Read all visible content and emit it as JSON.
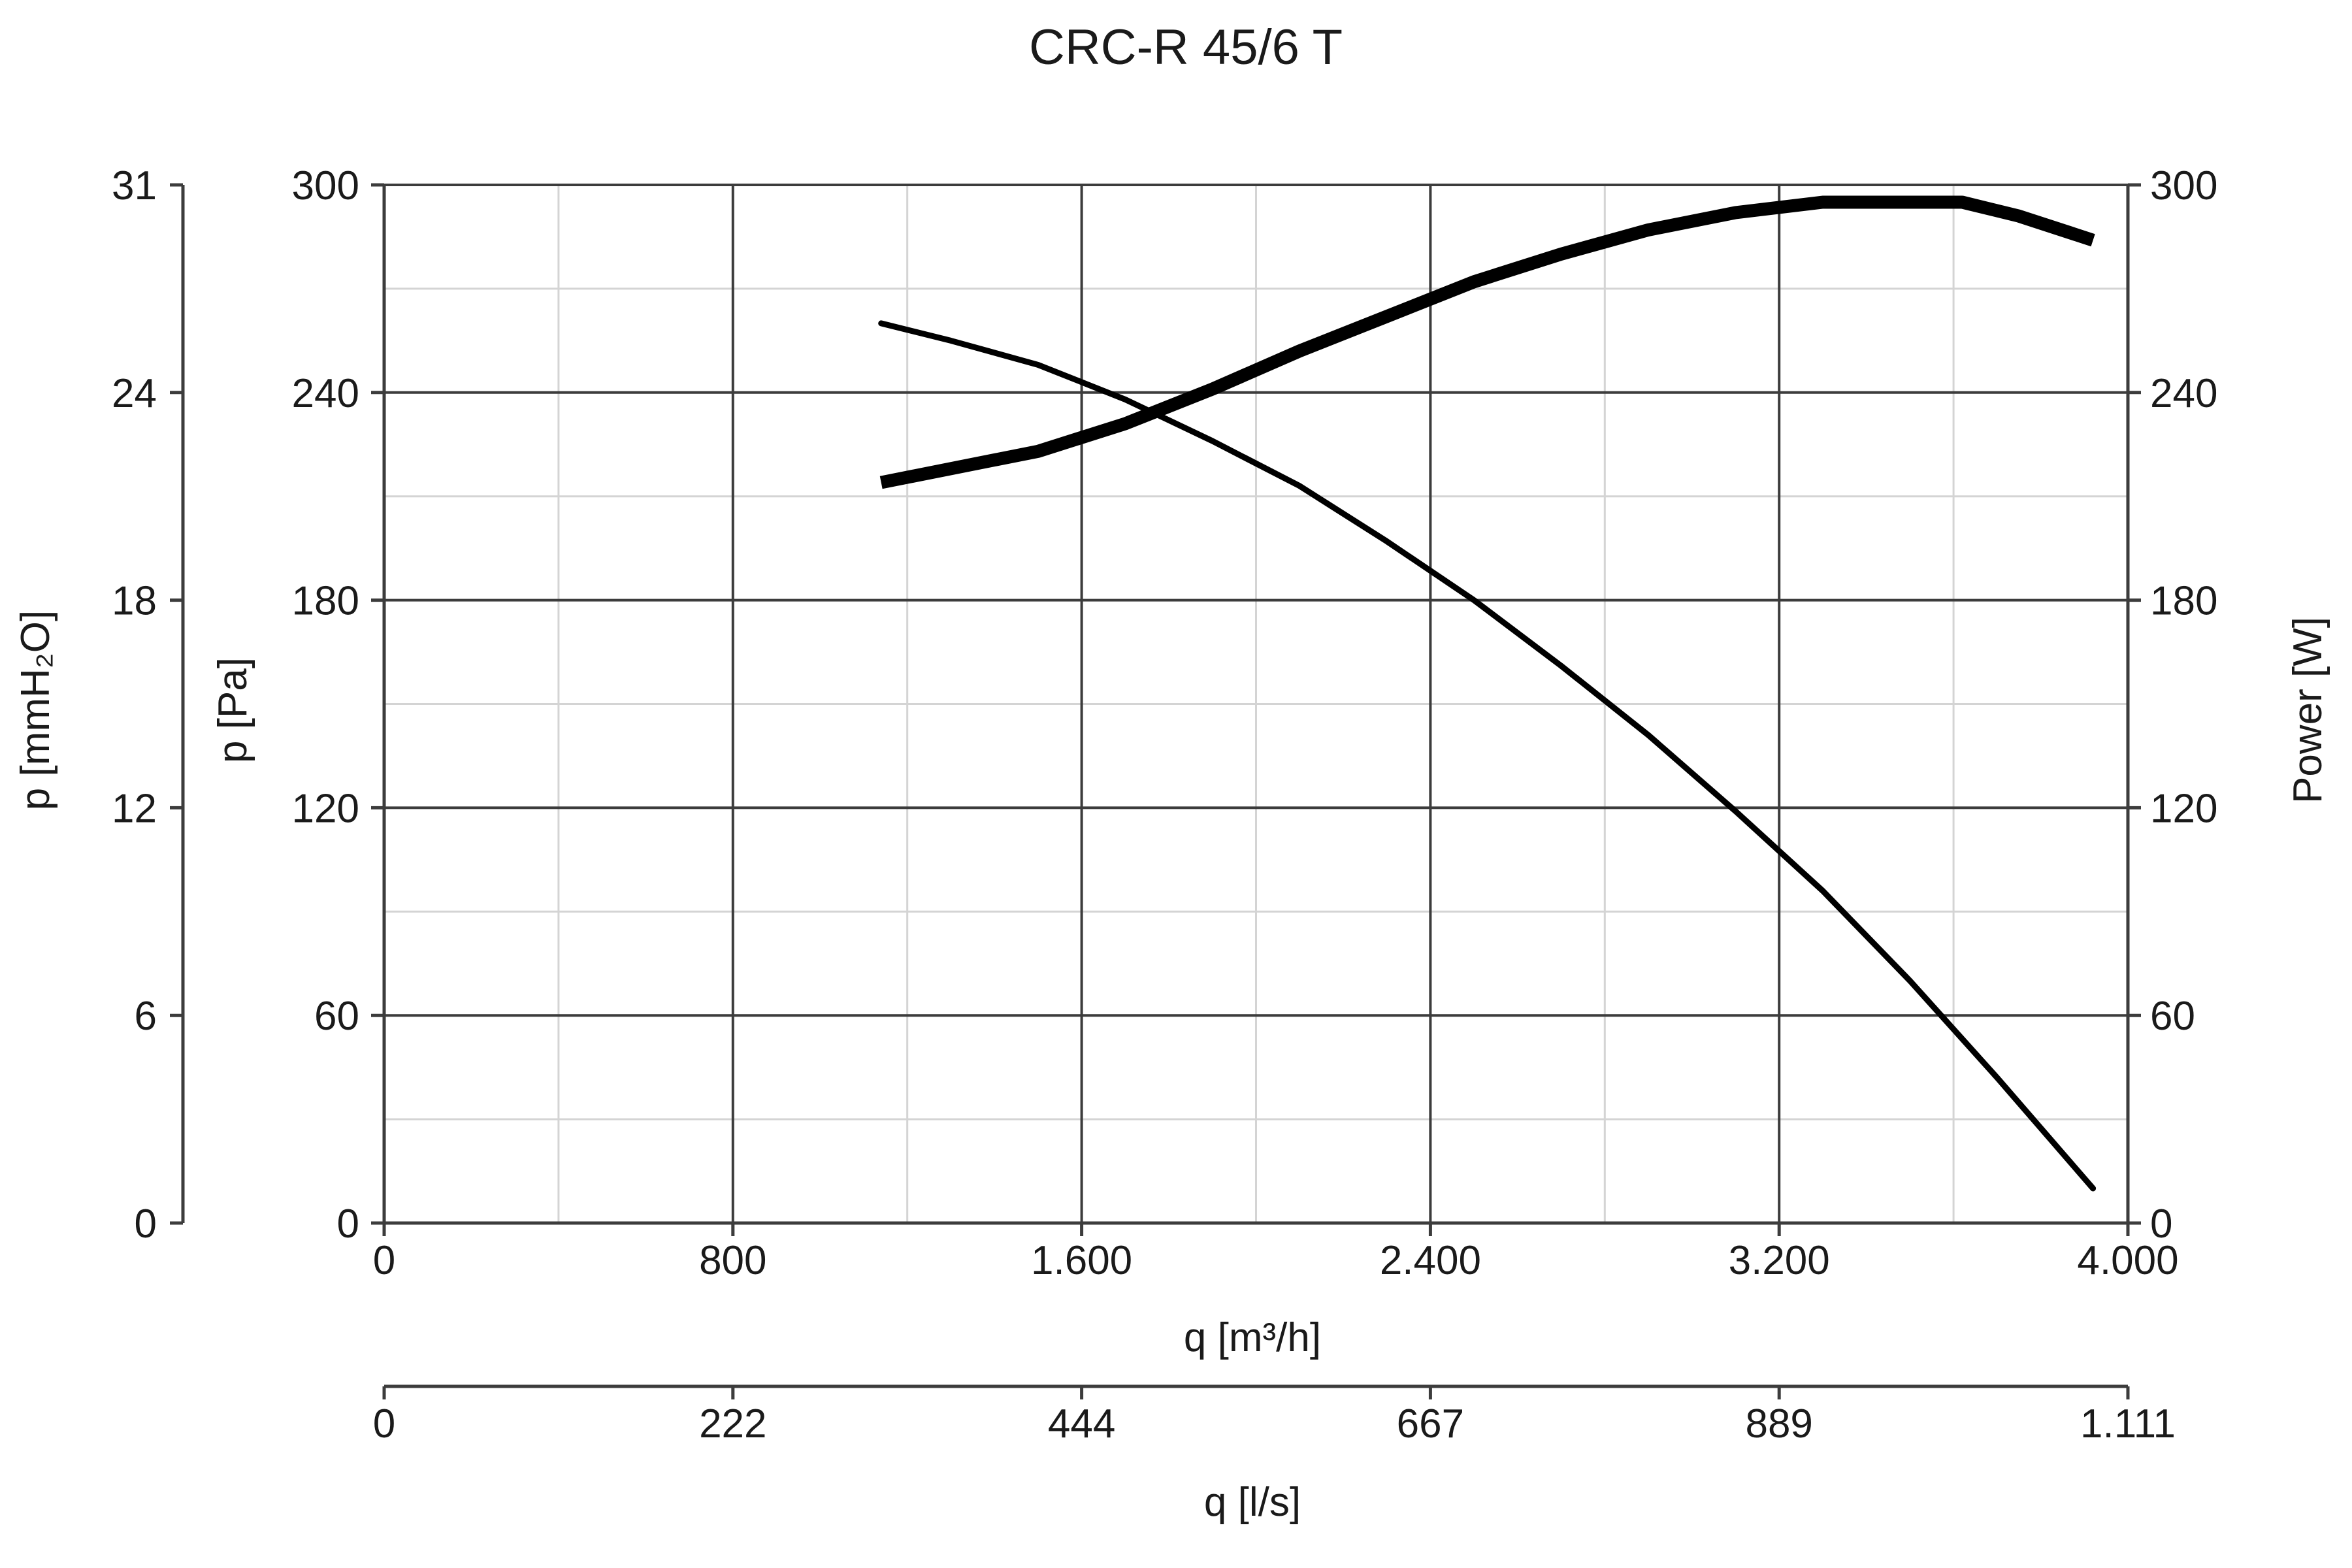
{
  "chart_data": {
    "type": "line",
    "title": "CRC-R 45/6 T",
    "x": {
      "label": "q [m³/h]",
      "range": [
        0,
        4000
      ],
      "ticks": [
        0,
        800,
        1600,
        2400,
        3200,
        4000
      ],
      "tick_labels": [
        "0",
        "800",
        "1.600",
        "2.400",
        "3.200",
        "4.000"
      ],
      "minor_step": 400
    },
    "x2": {
      "label": "q [l/s]",
      "range": [
        0,
        1111
      ],
      "tick_labels": [
        "0",
        "222",
        "444",
        "667",
        "889",
        "1.111"
      ]
    },
    "y": {
      "label": "p [Pa]",
      "range": [
        0,
        300
      ],
      "ticks": [
        0,
        60,
        120,
        180,
        240,
        300
      ],
      "tick_labels": [
        "0",
        "60",
        "120",
        "180",
        "240",
        "300"
      ],
      "minor_step": 30
    },
    "y_outer": {
      "label": "p [mmH₂O]",
      "range": [
        0,
        31
      ],
      "tick_labels": [
        "0",
        "6",
        "12",
        "18",
        "24",
        "31"
      ]
    },
    "y_right": {
      "label": "Power [W]",
      "range": [
        0,
        300
      ],
      "tick_labels": [
        "0",
        "60",
        "120",
        "180",
        "240",
        "300"
      ]
    },
    "grid": true,
    "series": [
      {
        "axis": "p [Pa]",
        "style": "thin",
        "points": [
          [
            1140,
            260
          ],
          [
            1300,
            255
          ],
          [
            1500,
            248
          ],
          [
            1700,
            238
          ],
          [
            1900,
            226
          ],
          [
            2100,
            213
          ],
          [
            2300,
            197
          ],
          [
            2500,
            180
          ],
          [
            2700,
            161
          ],
          [
            2900,
            141
          ],
          [
            3100,
            119
          ],
          [
            3300,
            96
          ],
          [
            3500,
            70
          ],
          [
            3700,
            42
          ],
          [
            3920,
            10
          ]
        ]
      },
      {
        "axis": "Power [W]",
        "style": "thick",
        "points": [
          [
            1140,
            214
          ],
          [
            1300,
            218
          ],
          [
            1500,
            223
          ],
          [
            1700,
            231
          ],
          [
            1900,
            241
          ],
          [
            2100,
            252
          ],
          [
            2300,
            262
          ],
          [
            2500,
            272
          ],
          [
            2700,
            280
          ],
          [
            2900,
            287
          ],
          [
            3100,
            292
          ],
          [
            3300,
            295
          ],
          [
            3500,
            295
          ],
          [
            3620,
            295
          ],
          [
            3750,
            291
          ],
          [
            3920,
            284
          ]
        ]
      }
    ]
  }
}
